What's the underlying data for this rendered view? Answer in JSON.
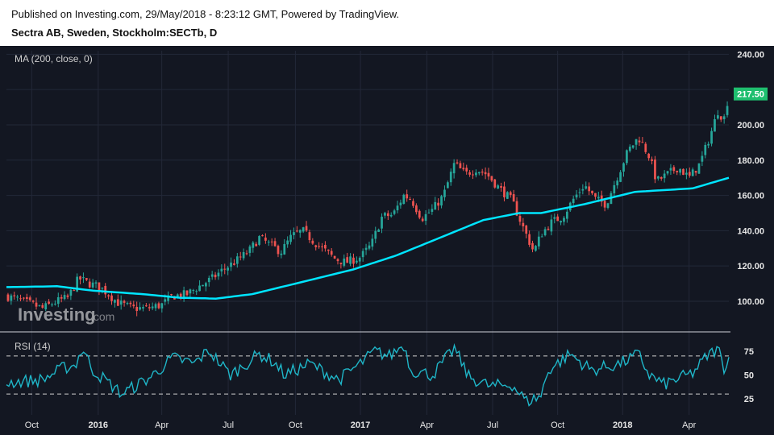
{
  "header": {
    "published": "Published on Investing.com, 29/May/2018 - 8:23:12 GMT, Powered by TradingView.",
    "instrument": "Sectra AB, Sweden, Stockholm:SECTb, D"
  },
  "watermark": {
    "brand": "Investing",
    "suffix": ".com"
  },
  "colors": {
    "background": "#131722",
    "grid": "#232838",
    "up": "#26a69a",
    "down": "#ef5350",
    "ma": "#00e5ff",
    "rsi": "#1fb6c8",
    "price_tag": "#1fbf6f",
    "text": "#e6e6e6"
  },
  "chart_data": {
    "type": "candlestick",
    "price_panel": {
      "indicator_label": "MA (200, close, 0)",
      "y_ticks": [
        100,
        120,
        140,
        160,
        180,
        200,
        220,
        240
      ],
      "y_tick_labels": [
        "100.00",
        "120.00",
        "140.00",
        "160.00",
        "180.00",
        "200.00",
        "",
        "240.00"
      ],
      "ylim": [
        84,
        242
      ],
      "last_price_label": "217.50",
      "last_price": 217.5,
      "close_path": [
        {
          "t": 0,
          "v": 103
        },
        {
          "t": 0.03,
          "v": 99
        },
        {
          "t": 0.05,
          "v": 96
        },
        {
          "t": 0.07,
          "v": 100
        },
        {
          "t": 0.085,
          "v": 102
        },
        {
          "t": 0.1,
          "v": 113
        },
        {
          "t": 0.115,
          "v": 110
        },
        {
          "t": 0.13,
          "v": 108
        },
        {
          "t": 0.155,
          "v": 99
        },
        {
          "t": 0.175,
          "v": 96
        },
        {
          "t": 0.195,
          "v": 96
        },
        {
          "t": 0.215,
          "v": 98
        },
        {
          "t": 0.23,
          "v": 103
        },
        {
          "t": 0.25,
          "v": 104
        },
        {
          "t": 0.265,
          "v": 108
        },
        {
          "t": 0.285,
          "v": 113
        },
        {
          "t": 0.3,
          "v": 118
        },
        {
          "t": 0.315,
          "v": 122
        },
        {
          "t": 0.335,
          "v": 128
        },
        {
          "t": 0.35,
          "v": 136
        },
        {
          "t": 0.365,
          "v": 132
        },
        {
          "t": 0.38,
          "v": 128
        },
        {
          "t": 0.395,
          "v": 137
        },
        {
          "t": 0.41,
          "v": 140
        },
        {
          "t": 0.425,
          "v": 134
        },
        {
          "t": 0.44,
          "v": 129
        },
        {
          "t": 0.455,
          "v": 124
        },
        {
          "t": 0.47,
          "v": 122
        },
        {
          "t": 0.49,
          "v": 125
        },
        {
          "t": 0.505,
          "v": 132
        },
        {
          "t": 0.52,
          "v": 148
        },
        {
          "t": 0.535,
          "v": 149
        },
        {
          "t": 0.55,
          "v": 160
        },
        {
          "t": 0.56,
          "v": 158
        },
        {
          "t": 0.575,
          "v": 147
        },
        {
          "t": 0.59,
          "v": 152
        },
        {
          "t": 0.605,
          "v": 160
        },
        {
          "t": 0.62,
          "v": 178
        },
        {
          "t": 0.635,
          "v": 172
        },
        {
          "t": 0.65,
          "v": 175
        },
        {
          "t": 0.665,
          "v": 172
        },
        {
          "t": 0.68,
          "v": 165
        },
        {
          "t": 0.7,
          "v": 157
        },
        {
          "t": 0.715,
          "v": 142
        },
        {
          "t": 0.73,
          "v": 128
        },
        {
          "t": 0.74,
          "v": 138
        },
        {
          "t": 0.755,
          "v": 145
        },
        {
          "t": 0.77,
          "v": 148
        },
        {
          "t": 0.785,
          "v": 158
        },
        {
          "t": 0.8,
          "v": 166
        },
        {
          "t": 0.815,
          "v": 158
        },
        {
          "t": 0.83,
          "v": 155
        },
        {
          "t": 0.845,
          "v": 170
        },
        {
          "t": 0.86,
          "v": 185
        },
        {
          "t": 0.875,
          "v": 193
        },
        {
          "t": 0.89,
          "v": 182
        },
        {
          "t": 0.9,
          "v": 168
        },
        {
          "t": 0.915,
          "v": 172
        },
        {
          "t": 0.93,
          "v": 176
        },
        {
          "t": 0.945,
          "v": 170
        },
        {
          "t": 0.96,
          "v": 178
        },
        {
          "t": 0.975,
          "v": 195
        },
        {
          "t": 0.985,
          "v": 208
        },
        {
          "t": 0.993,
          "v": 203
        },
        {
          "t": 1.0,
          "v": 217.5
        }
      ],
      "ma_path": [
        {
          "t": 0,
          "v": 108
        },
        {
          "t": 0.07,
          "v": 108.5
        },
        {
          "t": 0.12,
          "v": 106
        },
        {
          "t": 0.19,
          "v": 104
        },
        {
          "t": 0.24,
          "v": 102
        },
        {
          "t": 0.29,
          "v": 101.5
        },
        {
          "t": 0.34,
          "v": 104
        },
        {
          "t": 0.41,
          "v": 111
        },
        {
          "t": 0.48,
          "v": 118
        },
        {
          "t": 0.54,
          "v": 126
        },
        {
          "t": 0.6,
          "v": 136
        },
        {
          "t": 0.66,
          "v": 146
        },
        {
          "t": 0.71,
          "v": 150
        },
        {
          "t": 0.74,
          "v": 150
        },
        {
          "t": 0.8,
          "v": 155
        },
        {
          "t": 0.87,
          "v": 162
        },
        {
          "t": 0.91,
          "v": 163
        },
        {
          "t": 0.95,
          "v": 164
        },
        {
          "t": 1.0,
          "v": 170
        }
      ]
    },
    "rsi_panel": {
      "indicator_label": "RSI (14)",
      "y_ticks": [
        25,
        50,
        75
      ],
      "y_tick_labels": [
        "25",
        "50",
        "75"
      ],
      "ylim": [
        8,
        92
      ],
      "bands": [
        30,
        70
      ],
      "path": [
        {
          "t": 0,
          "v": 42
        },
        {
          "t": 0.05,
          "v": 45
        },
        {
          "t": 0.08,
          "v": 58
        },
        {
          "t": 0.095,
          "v": 60
        },
        {
          "t": 0.105,
          "v": 78
        },
        {
          "t": 0.12,
          "v": 55
        },
        {
          "t": 0.16,
          "v": 30
        },
        {
          "t": 0.2,
          "v": 48
        },
        {
          "t": 0.23,
          "v": 68
        },
        {
          "t": 0.26,
          "v": 62
        },
        {
          "t": 0.28,
          "v": 76
        },
        {
          "t": 0.31,
          "v": 50
        },
        {
          "t": 0.35,
          "v": 72
        },
        {
          "t": 0.37,
          "v": 64
        },
        {
          "t": 0.385,
          "v": 50
        },
        {
          "t": 0.42,
          "v": 62
        },
        {
          "t": 0.46,
          "v": 45
        },
        {
          "t": 0.49,
          "v": 62
        },
        {
          "t": 0.51,
          "v": 75
        },
        {
          "t": 0.53,
          "v": 70
        },
        {
          "t": 0.55,
          "v": 82
        },
        {
          "t": 0.56,
          "v": 55
        },
        {
          "t": 0.59,
          "v": 50
        },
        {
          "t": 0.62,
          "v": 78
        },
        {
          "t": 0.64,
          "v": 48
        },
        {
          "t": 0.67,
          "v": 38
        },
        {
          "t": 0.7,
          "v": 40
        },
        {
          "t": 0.72,
          "v": 22
        },
        {
          "t": 0.74,
          "v": 28
        },
        {
          "t": 0.75,
          "v": 55
        },
        {
          "t": 0.78,
          "v": 72
        },
        {
          "t": 0.81,
          "v": 55
        },
        {
          "t": 0.85,
          "v": 62
        },
        {
          "t": 0.875,
          "v": 72
        },
        {
          "t": 0.89,
          "v": 50
        },
        {
          "t": 0.91,
          "v": 40
        },
        {
          "t": 0.95,
          "v": 52
        },
        {
          "t": 0.97,
          "v": 70
        },
        {
          "t": 0.985,
          "v": 78
        },
        {
          "t": 0.993,
          "v": 58
        },
        {
          "t": 1.0,
          "v": 68
        }
      ]
    },
    "x_tick_labels": [
      "Oct",
      "2016",
      "Apr",
      "Jul",
      "Oct",
      "2017",
      "Apr",
      "Jul",
      "Oct",
      "2018",
      "Apr"
    ],
    "x_tick_positions": [
      0.035,
      0.127,
      0.215,
      0.307,
      0.4,
      0.49,
      0.582,
      0.673,
      0.763,
      0.853,
      0.945
    ],
    "x_tick_bold": [
      false,
      true,
      false,
      false,
      false,
      true,
      false,
      false,
      false,
      true,
      false
    ],
    "grid": true,
    "legend": "none"
  }
}
